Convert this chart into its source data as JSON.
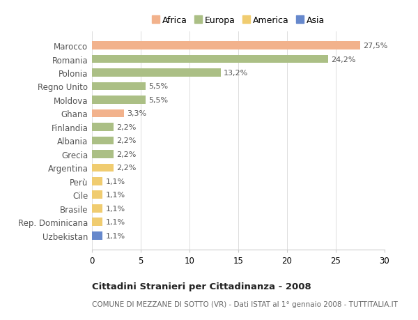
{
  "categories": [
    "Marocco",
    "Romania",
    "Polonia",
    "Regno Unito",
    "Moldova",
    "Ghana",
    "Finlandia",
    "Albania",
    "Grecia",
    "Argentina",
    "Perù",
    "Cile",
    "Brasile",
    "Rep. Dominicana",
    "Uzbekistan"
  ],
  "values": [
    27.5,
    24.2,
    13.2,
    5.5,
    5.5,
    3.3,
    2.2,
    2.2,
    2.2,
    2.2,
    1.1,
    1.1,
    1.1,
    1.1,
    1.1
  ],
  "labels": [
    "27,5%",
    "24,2%",
    "13,2%",
    "5,5%",
    "5,5%",
    "3,3%",
    "2,2%",
    "2,2%",
    "2,2%",
    "2,2%",
    "1,1%",
    "1,1%",
    "1,1%",
    "1,1%",
    "1,1%"
  ],
  "colors": [
    "#F2B28C",
    "#ABBF85",
    "#ABBF85",
    "#ABBF85",
    "#ABBF85",
    "#F2B28C",
    "#ABBF85",
    "#ABBF85",
    "#ABBF85",
    "#F0CC70",
    "#F0CC70",
    "#F0CC70",
    "#F0CC70",
    "#F0CC70",
    "#6688CC"
  ],
  "legend_labels": [
    "Africa",
    "Europa",
    "America",
    "Asia"
  ],
  "legend_colors": [
    "#F2B28C",
    "#ABBF85",
    "#F0CC70",
    "#6688CC"
  ],
  "xlim": [
    0,
    30
  ],
  "xticks": [
    0,
    5,
    10,
    15,
    20,
    25,
    30
  ],
  "title": "Cittadini Stranieri per Cittadinanza - 2008",
  "subtitle": "COMUNE DI MEZZANE DI SOTTO (VR) - Dati ISTAT al 1° gennaio 2008 - TUTTITALIA.IT",
  "bg_color": "#ffffff",
  "bar_height": 0.6
}
